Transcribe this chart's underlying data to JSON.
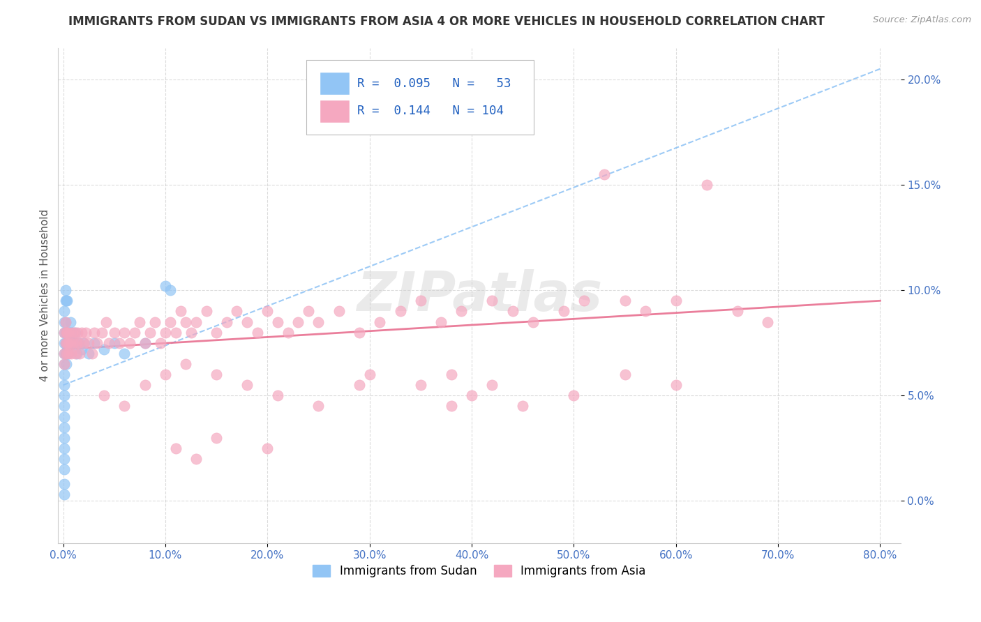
{
  "title": "IMMIGRANTS FROM SUDAN VS IMMIGRANTS FROM ASIA 4 OR MORE VEHICLES IN HOUSEHOLD CORRELATION CHART",
  "source": "Source: ZipAtlas.com",
  "ylabel": "4 or more Vehicles in Household",
  "xlim": [
    -0.005,
    0.82
  ],
  "ylim": [
    -0.02,
    0.215
  ],
  "xticks": [
    0.0,
    0.1,
    0.2,
    0.3,
    0.4,
    0.5,
    0.6,
    0.7,
    0.8
  ],
  "xticklabels": [
    "0.0%",
    "10.0%",
    "20.0%",
    "30.0%",
    "40.0%",
    "50.0%",
    "60.0%",
    "70.0%",
    "80.0%"
  ],
  "yticks": [
    0.0,
    0.05,
    0.1,
    0.15,
    0.2
  ],
  "yticklabels": [
    "0.0%",
    "5.0%",
    "10.0%",
    "15.0%",
    "20.0%"
  ],
  "sudan_color": "#92c5f5",
  "asia_color": "#f5a8c0",
  "sudan_R": 0.095,
  "sudan_N": 53,
  "asia_R": 0.144,
  "asia_N": 104,
  "watermark": "ZIPatlas",
  "title_color": "#333333",
  "axis_label_color": "#555555",
  "tick_color": "#4472c4",
  "grid_color": "#cccccc",
  "trend_sudan_color": "#92c5f5",
  "trend_asia_color": "#e87090",
  "trend_sudan_x0": 0.0,
  "trend_sudan_y0": 0.055,
  "trend_sudan_x1": 0.8,
  "trend_sudan_y1": 0.205,
  "trend_asia_x0": 0.0,
  "trend_asia_y0": 0.072,
  "trend_asia_x1": 0.8,
  "trend_asia_y1": 0.095,
  "sudan_x": [
    0.001,
    0.001,
    0.001,
    0.001,
    0.001,
    0.001,
    0.001,
    0.001,
    0.001,
    0.001,
    0.001,
    0.001,
    0.001,
    0.001,
    0.001,
    0.001,
    0.001,
    0.001,
    0.002,
    0.002,
    0.002,
    0.002,
    0.002,
    0.002,
    0.003,
    0.003,
    0.003,
    0.003,
    0.004,
    0.004,
    0.004,
    0.005,
    0.005,
    0.006,
    0.006,
    0.007,
    0.008,
    0.009,
    0.01,
    0.011,
    0.012,
    0.013,
    0.015,
    0.018,
    0.02,
    0.025,
    0.03,
    0.04,
    0.05,
    0.06,
    0.08,
    0.1,
    0.105
  ],
  "sudan_y": [
    0.075,
    0.07,
    0.065,
    0.06,
    0.055,
    0.05,
    0.045,
    0.04,
    0.035,
    0.03,
    0.025,
    0.02,
    0.015,
    0.008,
    0.003,
    0.08,
    0.085,
    0.09,
    0.07,
    0.075,
    0.08,
    0.085,
    0.095,
    0.1,
    0.065,
    0.07,
    0.08,
    0.095,
    0.075,
    0.08,
    0.095,
    0.07,
    0.075,
    0.075,
    0.08,
    0.085,
    0.08,
    0.075,
    0.08,
    0.075,
    0.08,
    0.07,
    0.075,
    0.072,
    0.075,
    0.07,
    0.075,
    0.072,
    0.075,
    0.07,
    0.075,
    0.102,
    0.1
  ],
  "asia_x": [
    0.001,
    0.001,
    0.001,
    0.002,
    0.002,
    0.003,
    0.003,
    0.004,
    0.004,
    0.005,
    0.005,
    0.006,
    0.007,
    0.008,
    0.009,
    0.01,
    0.011,
    0.012,
    0.013,
    0.014,
    0.015,
    0.016,
    0.018,
    0.02,
    0.022,
    0.025,
    0.028,
    0.03,
    0.033,
    0.038,
    0.042,
    0.045,
    0.05,
    0.055,
    0.06,
    0.065,
    0.07,
    0.075,
    0.08,
    0.085,
    0.09,
    0.095,
    0.1,
    0.105,
    0.11,
    0.115,
    0.12,
    0.125,
    0.13,
    0.14,
    0.15,
    0.16,
    0.17,
    0.18,
    0.19,
    0.2,
    0.21,
    0.22,
    0.23,
    0.24,
    0.25,
    0.27,
    0.29,
    0.31,
    0.33,
    0.35,
    0.37,
    0.39,
    0.42,
    0.44,
    0.46,
    0.49,
    0.51,
    0.53,
    0.55,
    0.57,
    0.6,
    0.63,
    0.66,
    0.69,
    0.04,
    0.06,
    0.08,
    0.1,
    0.12,
    0.15,
    0.18,
    0.21,
    0.25,
    0.3,
    0.35,
    0.4,
    0.45,
    0.38,
    0.42,
    0.55,
    0.6,
    0.5,
    0.38,
    0.29,
    0.2,
    0.15,
    0.13,
    0.11
  ],
  "asia_y": [
    0.07,
    0.08,
    0.065,
    0.075,
    0.085,
    0.07,
    0.08,
    0.075,
    0.08,
    0.07,
    0.075,
    0.08,
    0.075,
    0.07,
    0.08,
    0.075,
    0.08,
    0.07,
    0.075,
    0.08,
    0.075,
    0.07,
    0.08,
    0.075,
    0.08,
    0.075,
    0.07,
    0.08,
    0.075,
    0.08,
    0.085,
    0.075,
    0.08,
    0.075,
    0.08,
    0.075,
    0.08,
    0.085,
    0.075,
    0.08,
    0.085,
    0.075,
    0.08,
    0.085,
    0.08,
    0.09,
    0.085,
    0.08,
    0.085,
    0.09,
    0.08,
    0.085,
    0.09,
    0.085,
    0.08,
    0.09,
    0.085,
    0.08,
    0.085,
    0.09,
    0.085,
    0.09,
    0.08,
    0.085,
    0.09,
    0.095,
    0.085,
    0.09,
    0.095,
    0.09,
    0.085,
    0.09,
    0.095,
    0.155,
    0.095,
    0.09,
    0.095,
    0.15,
    0.09,
    0.085,
    0.05,
    0.045,
    0.055,
    0.06,
    0.065,
    0.06,
    0.055,
    0.05,
    0.045,
    0.06,
    0.055,
    0.05,
    0.045,
    0.06,
    0.055,
    0.06,
    0.055,
    0.05,
    0.045,
    0.055,
    0.025,
    0.03,
    0.02,
    0.025
  ]
}
